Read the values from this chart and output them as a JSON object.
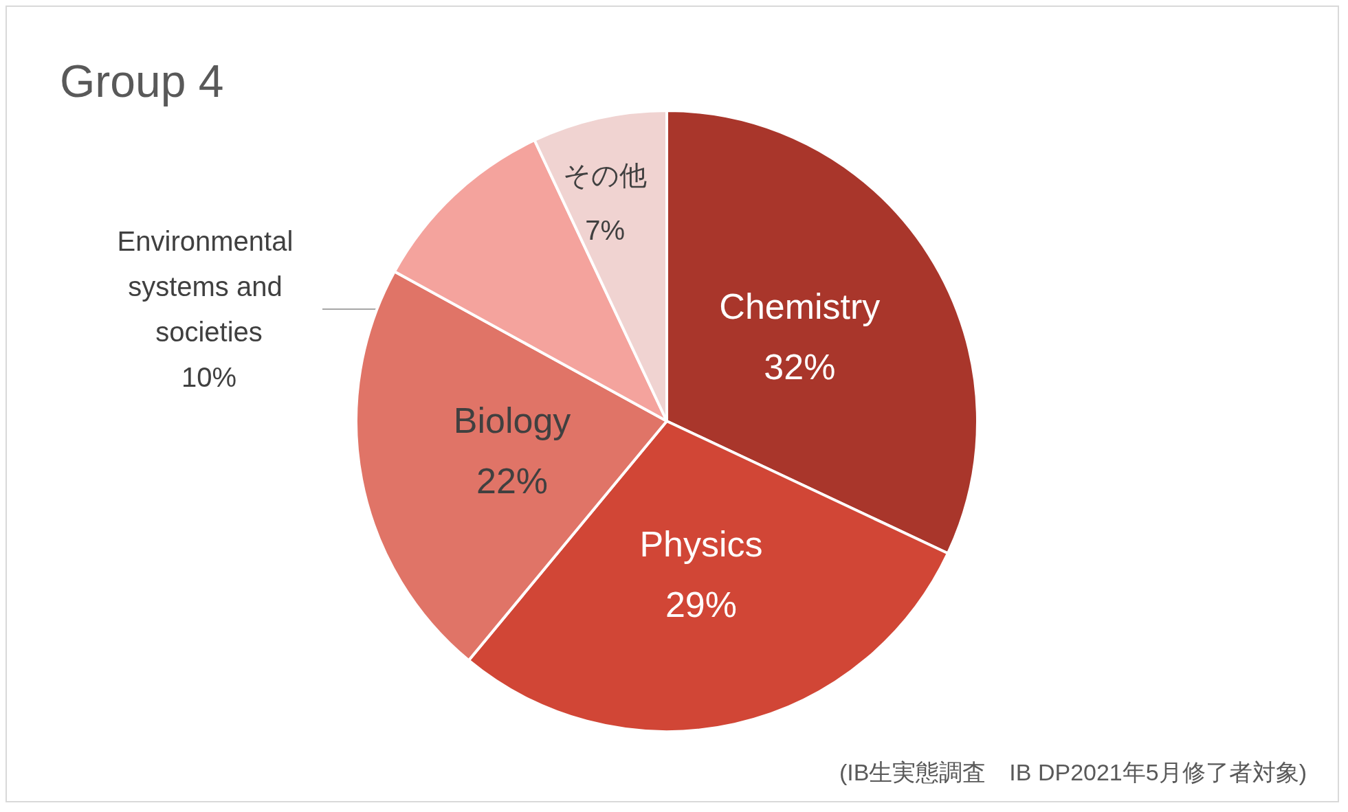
{
  "chart_data": {
    "type": "pie",
    "title": "Group 4",
    "categories": [
      "Chemistry",
      "Physics",
      "Biology",
      "Environmental systems and societies",
      "その他"
    ],
    "values": [
      32,
      29,
      22,
      10,
      7
    ],
    "value_labels": [
      "32%",
      "29%",
      "22%",
      "10%",
      "7%"
    ],
    "colors": [
      "#a9362b",
      "#d14636",
      "#e07467",
      "#f4a39d",
      "#f0d3d1"
    ],
    "annotations": [
      "(IB生実態調査　IB DP2021年5月修了者対象)"
    ]
  }
}
